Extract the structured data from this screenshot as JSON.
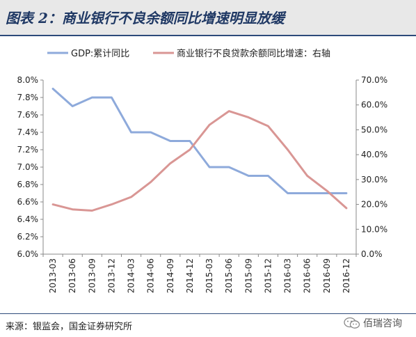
{
  "header": {
    "title": "图表 2：商业银行不良余额同比增速明显放缓"
  },
  "footer": {
    "source": "来源：银监会，国金证券研究所",
    "watermark": "佰瑞咨询"
  },
  "chart_data": {
    "type": "line",
    "categories": [
      "2013-03",
      "2013-06",
      "2013-09",
      "2013-12",
      "2014-03",
      "2014-06",
      "2014-09",
      "2014-12",
      "2015-03",
      "2015-06",
      "2015-09",
      "2015-12",
      "2016-03",
      "2016-06",
      "2016-09",
      "2016-12"
    ],
    "series": [
      {
        "name": "GDP:累计同比",
        "axis": "left",
        "color": "#8eaadb",
        "values": [
          7.9,
          7.7,
          7.8,
          7.8,
          7.4,
          7.4,
          7.3,
          7.3,
          7.0,
          7.0,
          6.9,
          6.9,
          6.7,
          6.7,
          6.7,
          6.7
        ]
      },
      {
        "name": "商业银行不良贷款余额同比增速：右轴",
        "axis": "right",
        "color": "#d99694",
        "values": [
          20.0,
          18.0,
          17.5,
          20.0,
          23.0,
          29.0,
          36.5,
          42.0,
          52.0,
          57.5,
          55.0,
          51.5,
          42.0,
          31.5,
          25.5,
          18.5
        ]
      }
    ],
    "y_left": {
      "ylim": [
        6.0,
        8.0
      ],
      "ticks": [
        "6.0%",
        "6.2%",
        "6.4%",
        "6.6%",
        "6.8%",
        "7.0%",
        "7.2%",
        "7.4%",
        "7.6%",
        "7.8%",
        "8.0%"
      ]
    },
    "y_right": {
      "ylim": [
        0,
        70
      ],
      "ticks": [
        "0.0%",
        "10.0%",
        "20.0%",
        "30.0%",
        "40.0%",
        "50.0%",
        "60.0%",
        "70.0%"
      ]
    },
    "legend": "top",
    "grid": false
  }
}
